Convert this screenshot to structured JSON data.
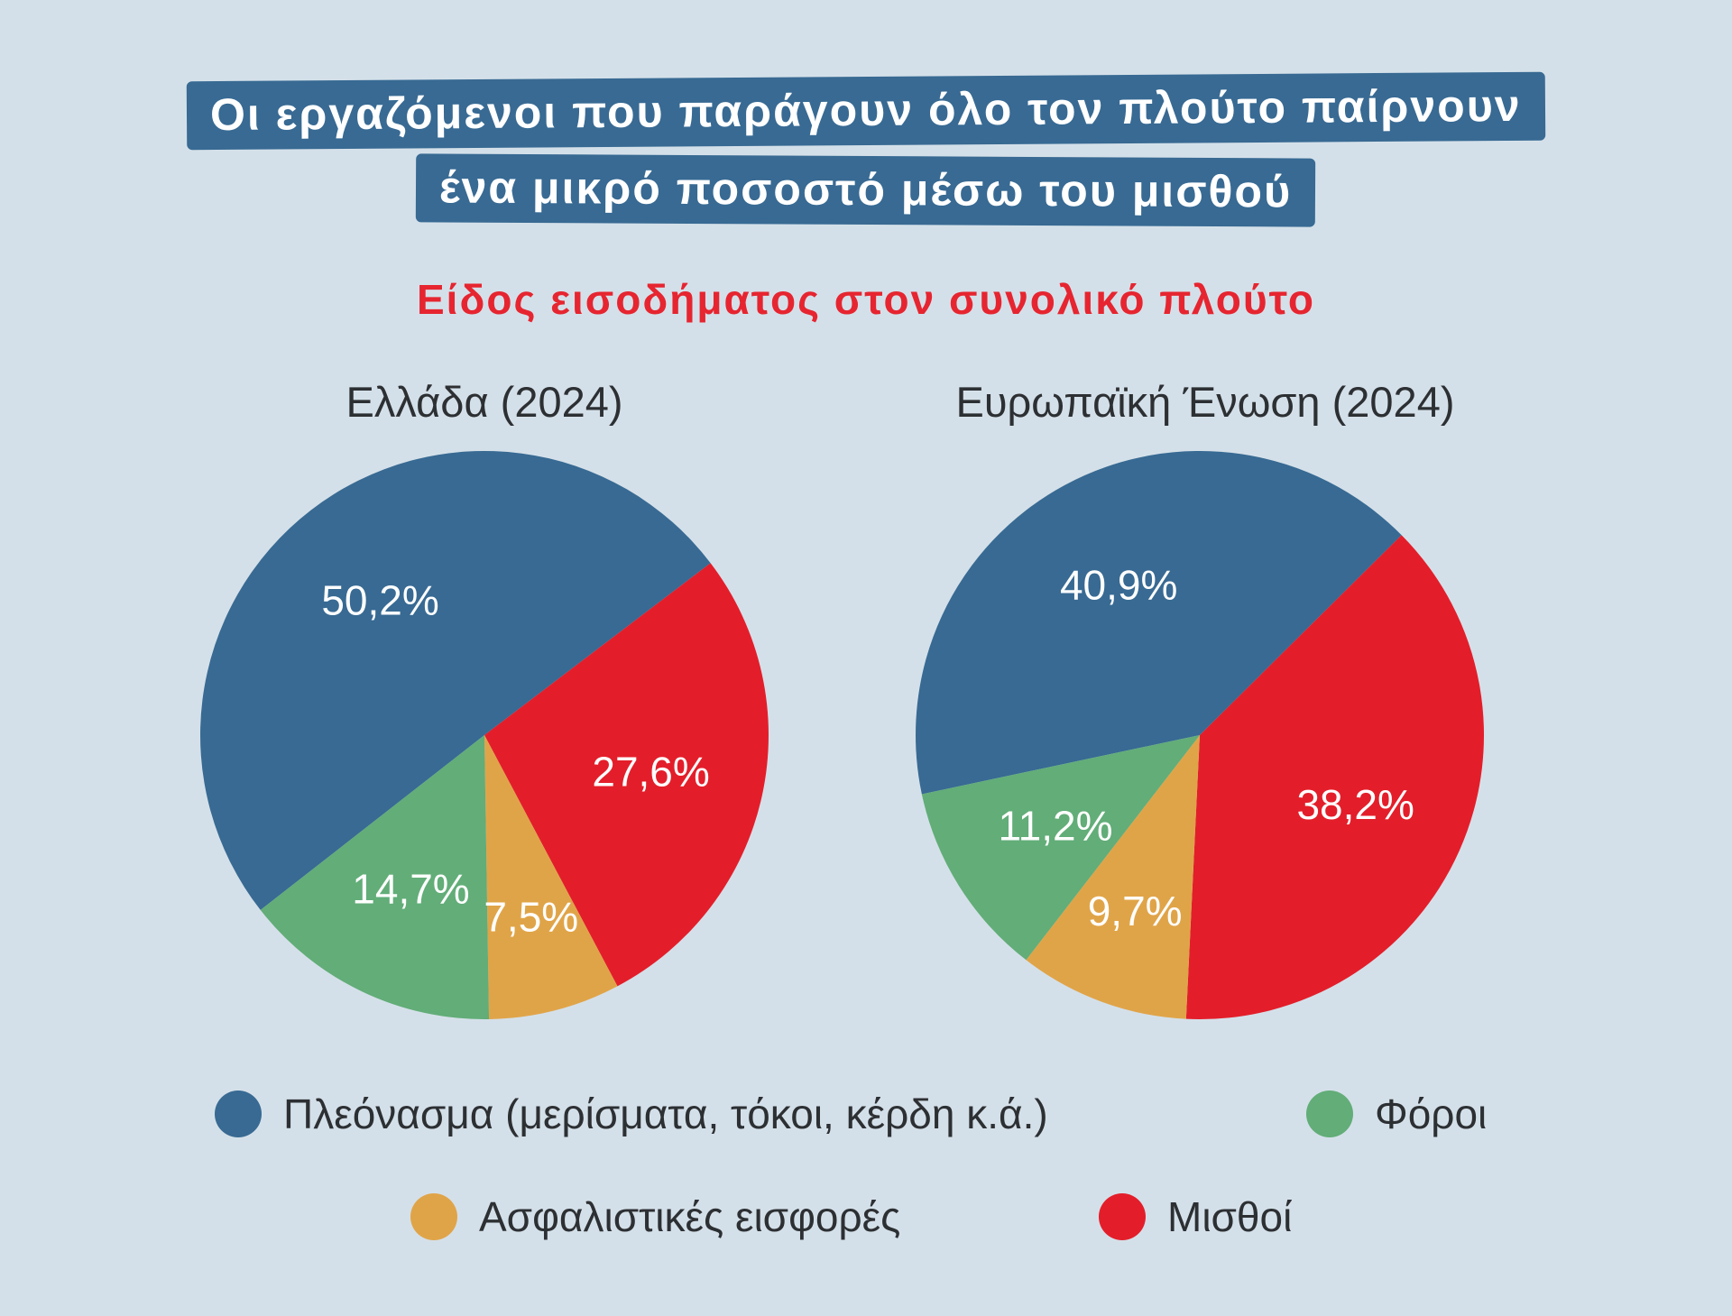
{
  "title": {
    "line1": "Οι εργαζόμενοι που παράγουν όλο τον πλούτο παίρνουν",
    "line2": "ένα μικρό ποσοστό μέσω του μισθού"
  },
  "subtitle": "Είδος εισοδήματος στον συνολικό πλούτο",
  "colors": {
    "surplus": "#386a93",
    "wages": "#e31e2a",
    "contributions": "#e0a448",
    "taxes": "#62ad78"
  },
  "chart_data": [
    {
      "type": "pie",
      "title": "Ελλάδα (2024)",
      "slices": [
        {
          "key": "surplus",
          "label": "Πλεόνασμα (μερίσματα, τόκοι, κέρδη κ.ά.)",
          "value": 50.2,
          "value_label": "50,2%"
        },
        {
          "key": "wages",
          "label": "Μισθοί",
          "value": 27.6,
          "value_label": "27,6%"
        },
        {
          "key": "contributions",
          "label": "Ασφαλιστικές εισφορές",
          "value": 7.5,
          "value_label": "7,5%"
        },
        {
          "key": "taxes",
          "label": "Φόροι",
          "value": 14.7,
          "value_label": "14,7%"
        }
      ]
    },
    {
      "type": "pie",
      "title": "Ευρωπαϊκή Ένωση (2024)",
      "slices": [
        {
          "key": "surplus",
          "label": "Πλεόνασμα (μερίσματα, τόκοι, κέρδη κ.ά.)",
          "value": 40.9,
          "value_label": "40,9%"
        },
        {
          "key": "wages",
          "label": "Μισθοί",
          "value": 38.2,
          "value_label": "38,2%"
        },
        {
          "key": "contributions",
          "label": "Ασφαλιστικές εισφορές",
          "value": 9.7,
          "value_label": "9,7%"
        },
        {
          "key": "taxes",
          "label": "Φόροι",
          "value": 11.2,
          "value_label": "11,2%"
        }
      ]
    }
  ],
  "legend": [
    {
      "key": "surplus",
      "label": "Πλεόνασμα (μερίσματα, τόκοι, κέρδη κ.ά.)"
    },
    {
      "key": "taxes",
      "label": "Φόροι"
    },
    {
      "key": "contributions",
      "label": "Ασφαλιστικές εισφορές"
    },
    {
      "key": "wages",
      "label": "Μισθοί"
    }
  ]
}
